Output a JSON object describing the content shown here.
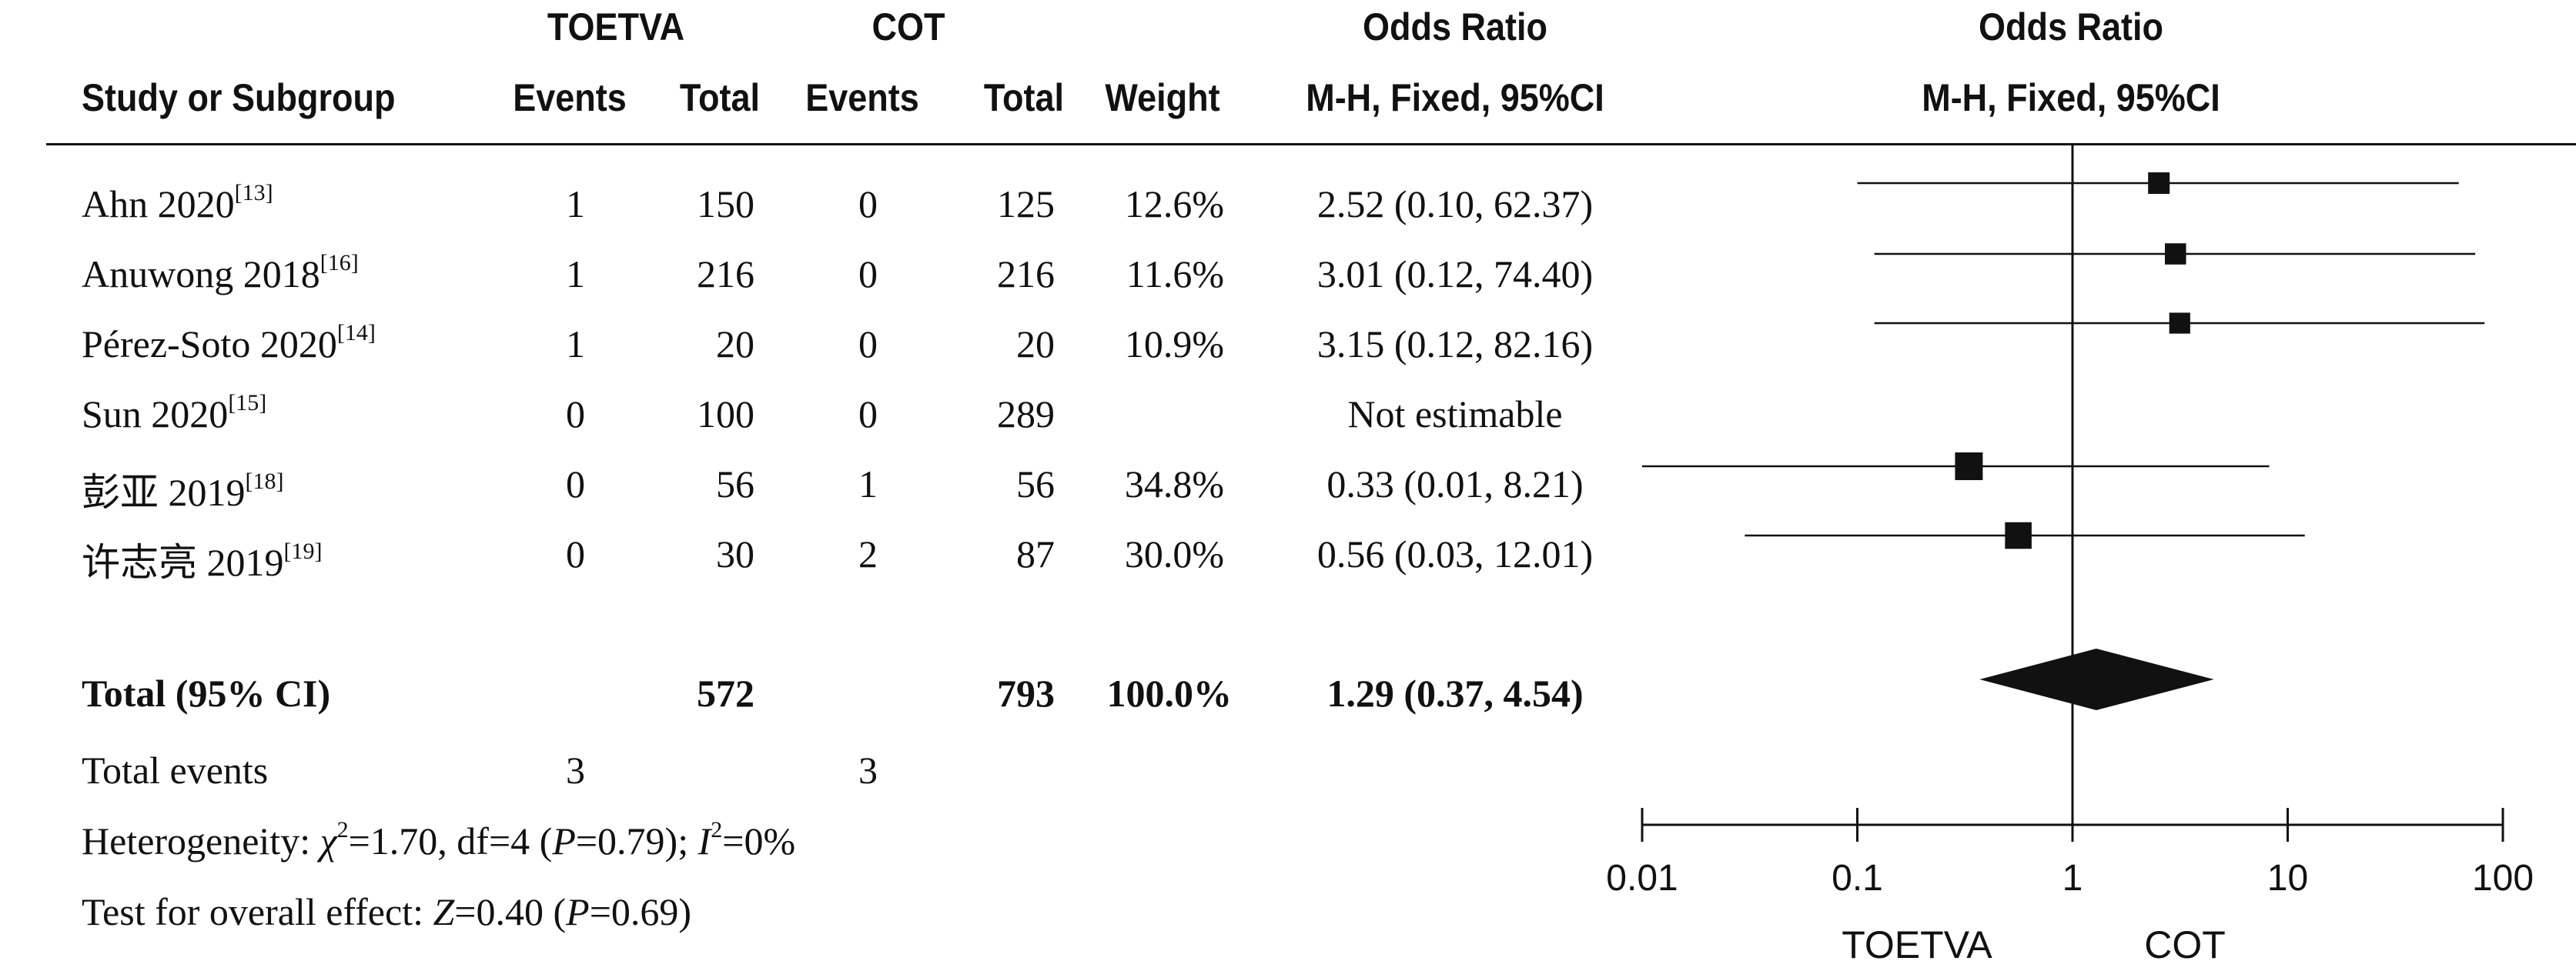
{
  "headers": {
    "group1": "TOETVA",
    "group2": "COT",
    "study": "Study or Subgroup",
    "events": "Events",
    "total": "Total",
    "weight": "Weight",
    "or_title": "Odds Ratio",
    "or_method": "M-H, Fixed, 95%CI",
    "plot_title": "Odds Ratio",
    "plot_method": "M-H, Fixed, 95%CI"
  },
  "studies": [
    {
      "name": "Ahn 2020",
      "ref": "[13]",
      "e1": "1",
      "t1": "150",
      "e2": "0",
      "t2": "125",
      "weight": "12.6%",
      "ci_text": "2.52 (0.10, 62.37)"
    },
    {
      "name": "Anuwong 2018",
      "ref": "[16]",
      "e1": "1",
      "t1": "216",
      "e2": "0",
      "t2": "216",
      "weight": "11.6%",
      "ci_text": "3.01 (0.12, 74.40)"
    },
    {
      "name": "Pérez-Soto 2020",
      "ref": "[14]",
      "e1": "1",
      "t1": "20",
      "e2": "0",
      "t2": "20",
      "weight": "10.9%",
      "ci_text": "3.15 (0.12, 82.16)"
    },
    {
      "name": "Sun 2020",
      "ref": "[15]",
      "e1": "0",
      "t1": "100",
      "e2": "0",
      "t2": "289",
      "weight": "",
      "ci_text": "Not estimable"
    },
    {
      "name": "彭亚 2019",
      "ref": "[18]",
      "e1": "0",
      "t1": "56",
      "e2": "1",
      "t2": "56",
      "weight": "34.8%",
      "ci_text": "0.33 (0.01, 8.21)"
    },
    {
      "name": "许志亮 2019",
      "ref": "[19]",
      "e1": "0",
      "t1": "30",
      "e2": "2",
      "t2": "87",
      "weight": "30.0%",
      "ci_text": "0.56 (0.03, 12.01)"
    }
  ],
  "total": {
    "label": "Total (95% CI)",
    "t1": "572",
    "t2": "793",
    "weight": "100.0%",
    "ci_text": "1.29 (0.37, 4.54)"
  },
  "total_events": {
    "label": "Total events",
    "e1": "3",
    "e2": "3"
  },
  "heterogeneity": {
    "prefix": "Heterogeneity: ",
    "chi": "χ",
    "chi_rest": "=1.70, df=4 (",
    "p": "P",
    "p_rest": "=0.79); ",
    "i": "I",
    "i_rest": "=0%"
  },
  "overall": {
    "prefix": "Test for overall effect: ",
    "z": "Z",
    "z_rest": "=0.40 (",
    "p": "P",
    "p_rest": "=0.69)"
  },
  "chart_data": {
    "type": "forest",
    "scale": "log",
    "xlim": [
      0.01,
      100
    ],
    "ticks": [
      0.01,
      0.1,
      1,
      10,
      100
    ],
    "tick_labels": [
      "0.01",
      "0.1",
      "1",
      "10",
      "100"
    ],
    "favours_left": "TOETVA",
    "favours_right": "COT",
    "points": [
      {
        "or": 2.52,
        "lo": 0.1,
        "hi": 62.37,
        "weight": 12.6
      },
      {
        "or": 3.01,
        "lo": 0.12,
        "hi": 74.4,
        "weight": 11.6
      },
      {
        "or": 3.15,
        "lo": 0.12,
        "hi": 82.16,
        "weight": 10.9
      },
      {
        "or": 0.33,
        "lo": 0.01,
        "hi": 8.21,
        "weight": 34.8
      },
      {
        "or": 0.56,
        "lo": 0.03,
        "hi": 12.01,
        "weight": 30.0
      }
    ],
    "pooled": {
      "or": 1.29,
      "lo": 0.37,
      "hi": 4.54
    }
  }
}
